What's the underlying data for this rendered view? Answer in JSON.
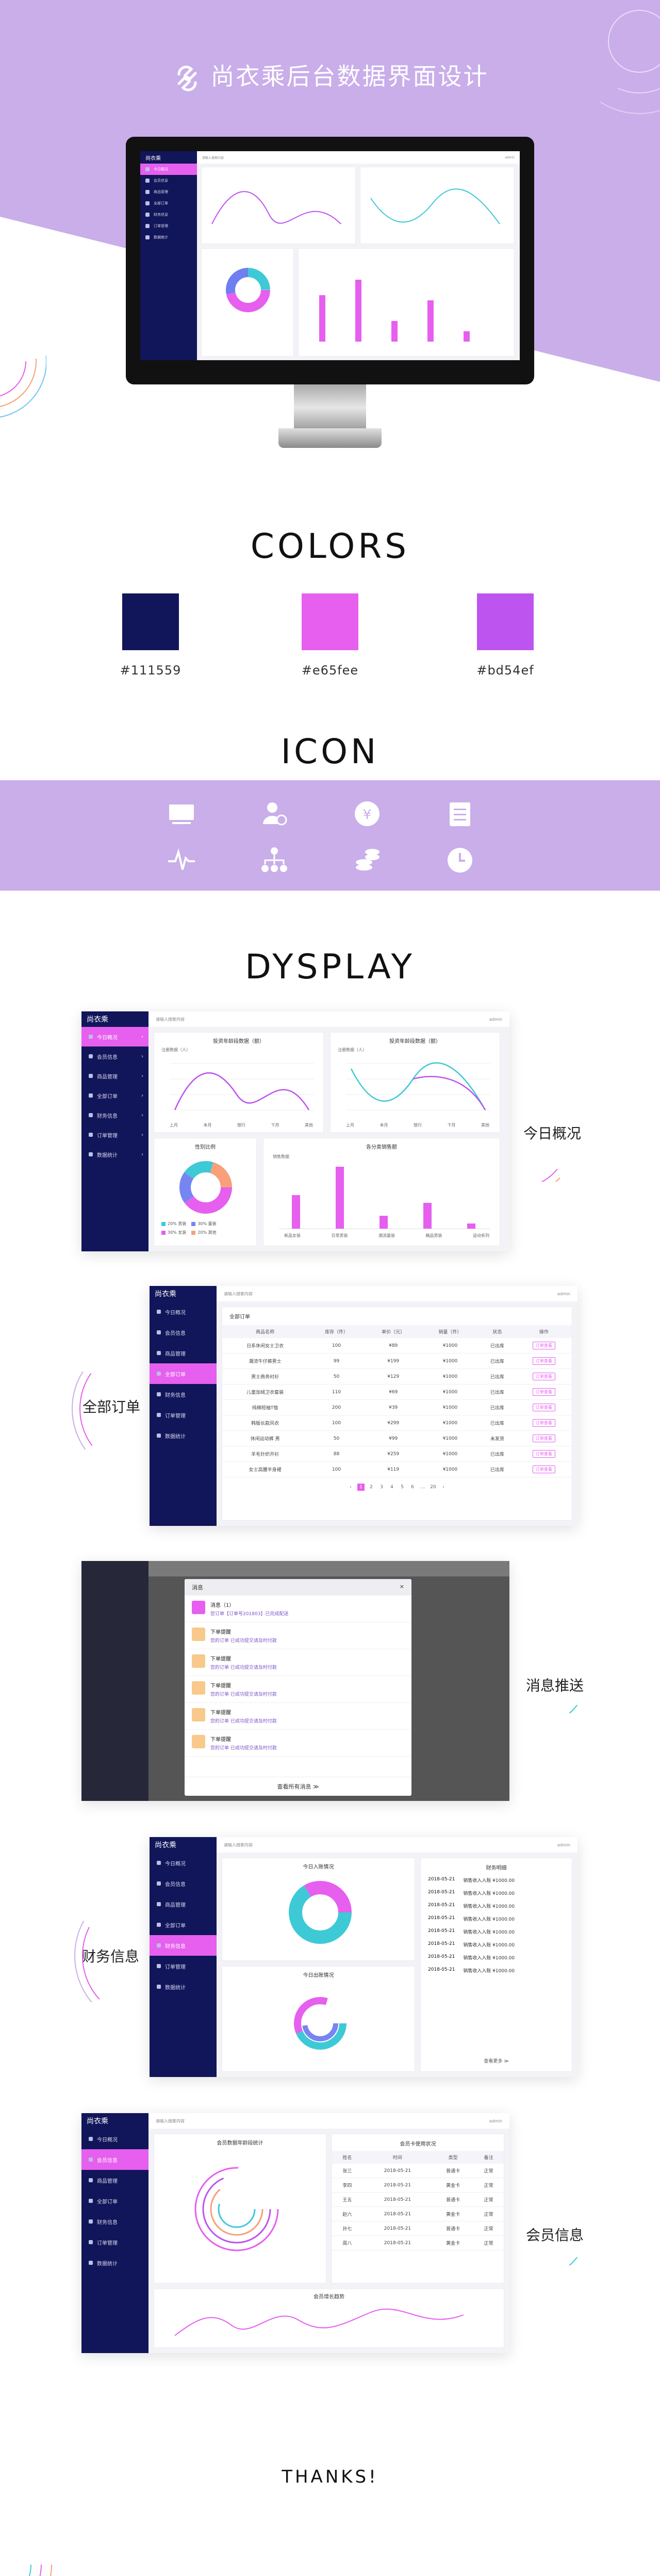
{
  "hero": {
    "title": "尚衣乘后台数据界面设计"
  },
  "colors": {
    "title": "COLORS",
    "swatches": [
      {
        "hex": "#111559",
        "label": "#111559"
      },
      {
        "hex": "#e65fee",
        "label": "#e65fee"
      },
      {
        "hex": "#bd54ef",
        "label": "#bd54ef"
      }
    ]
  },
  "icon_section": {
    "title": "ICON",
    "icons": [
      "monitor-icon",
      "user-clock-icon",
      "yen-coin-icon",
      "notepad-icon",
      "pulse-icon",
      "hierarchy-icon",
      "coin-stack-icon",
      "clock-icon"
    ]
  },
  "display": {
    "title": "DYSPLAY"
  },
  "captions": {
    "overview": "今日概况",
    "orders": "全部订单",
    "messages": "消息推送",
    "finance": "财务信息",
    "members": "会员信息"
  },
  "app": {
    "brand": "尚衣乘",
    "sidebar": [
      "今日概况",
      "会员信息",
      "商品管理",
      "全部订单",
      "财务信息",
      "订单管理",
      "数据统计"
    ],
    "search_placeholder": "请输入搜索内容",
    "user": "admin"
  },
  "overview": {
    "chart1_title": "投资年龄段数据（额）",
    "chart2_title": "投资年龄段数据（额）",
    "chart1_label": "注册数据（人）",
    "chart2_label": "注册数据（人）",
    "x_labels": [
      "上月",
      "本月",
      "银行",
      "下月",
      "其他"
    ],
    "donut_title": "性别比例",
    "donut_legend": [
      "20% 男装",
      "30% 童装",
      "30% 女装",
      "20% 其他"
    ],
    "bar_title": "各分类销售额",
    "bar_label": "销售数据",
    "bar_cats": [
      "新品女装",
      "日常男装",
      "潮流童装",
      "精品男装",
      "运动系列"
    ]
  },
  "orders": {
    "section": "全部订单",
    "headers": [
      "商品名称",
      "库存（件）",
      "单价（元）",
      "销量（件）",
      "状态",
      "操作"
    ],
    "rows": [
      [
        "日系休闲女士卫衣",
        "100",
        "¥89",
        "¥1000",
        "已出库",
        "订单查看"
      ],
      [
        "潮流牛仔裤男士",
        "99",
        "¥199",
        "¥1000",
        "已出库",
        "订单查看"
      ],
      [
        "男士商务衬衫",
        "50",
        "¥129",
        "¥1000",
        "已出库",
        "订单查看"
      ],
      [
        "儿童加绒卫衣套装",
        "110",
        "¥69",
        "¥1000",
        "已出库",
        "订单查看"
      ],
      [
        "纯棉短袖T恤",
        "200",
        "¥39",
        "¥1000",
        "已出库",
        "订单查看"
      ],
      [
        "韩版长款风衣",
        "100",
        "¥299",
        "¥1000",
        "已出库",
        "订单查看"
      ],
      [
        "休闲运动裤 男",
        "50",
        "¥99",
        "¥1000",
        "未发货",
        "订单查看"
      ],
      [
        "羊毛针织开衫",
        "88",
        "¥259",
        "¥1000",
        "已出库",
        "订单查看"
      ],
      [
        "女士高腰半身裙",
        "100",
        "¥119",
        "¥1000",
        "已出库",
        "订单查看"
      ]
    ],
    "pages": [
      "1",
      "2",
      "3",
      "4",
      "5",
      "6",
      "...",
      "20"
    ]
  },
  "messages": {
    "title": "消息",
    "items": [
      {
        "t": "消息（1）",
        "s": "您订单【订单号201803】已完成配送",
        "c": "#e65fee"
      },
      {
        "t": "下单提醒",
        "s": "您的订单 已成功提交请及时付款",
        "c": "#f8c98a"
      },
      {
        "t": "下单提醒",
        "s": "您的订单 已成功提交请及时付款",
        "c": "#f8c98a"
      },
      {
        "t": "下单提醒",
        "s": "您的订单 已成功提交请及时付款",
        "c": "#f8c98a"
      },
      {
        "t": "下单提醒",
        "s": "您的订单 已成功提交请及时付款",
        "c": "#f8c98a"
      },
      {
        "t": "下单提醒",
        "s": "您的订单 已成功提交请及时付款",
        "c": "#f8c98a"
      }
    ],
    "more": "查看所有消息 ≫"
  },
  "finance": {
    "donut1_title": "今日入账情况",
    "donut2_title": "今日出账情况",
    "list_title": "财务明细",
    "rows": [
      [
        "2018-05-21",
        "销售收入入账 ¥1000.00"
      ],
      [
        "2018-05-21",
        "销售收入入账 ¥1000.00"
      ],
      [
        "2018-05-21",
        "销售收入入账 ¥1000.00"
      ],
      [
        "2018-05-21",
        "销售收入入账 ¥1000.00"
      ],
      [
        "2018-05-21",
        "销售收入入账 ¥1000.00"
      ],
      [
        "2018-05-21",
        "销售收入入账 ¥1000.00"
      ],
      [
        "2018-05-21",
        "销售收入入账 ¥1000.00"
      ],
      [
        "2018-05-21",
        "销售收入入账 ¥1000.00"
      ]
    ],
    "more": "查看更多 ≫"
  },
  "members": {
    "rings_title": "会员数据年龄段统计",
    "table_title": "会员卡使用状况",
    "table_headers": [
      "姓名",
      "时间",
      "类型",
      "备注"
    ],
    "table_rows": [
      [
        "张三",
        "2018-05-21",
        "普通卡",
        "正常"
      ],
      [
        "李四",
        "2018-05-21",
        "黄金卡",
        "正常"
      ],
      [
        "王五",
        "2018-05-21",
        "普通卡",
        "正常"
      ],
      [
        "赵六",
        "2018-05-21",
        "黄金卡",
        "正常"
      ],
      [
        "孙七",
        "2018-05-21",
        "普通卡",
        "正常"
      ],
      [
        "周八",
        "2018-05-21",
        "黄金卡",
        "正常"
      ]
    ],
    "trend_title": "会员增长趋势"
  },
  "thanks": "THANKS!"
}
